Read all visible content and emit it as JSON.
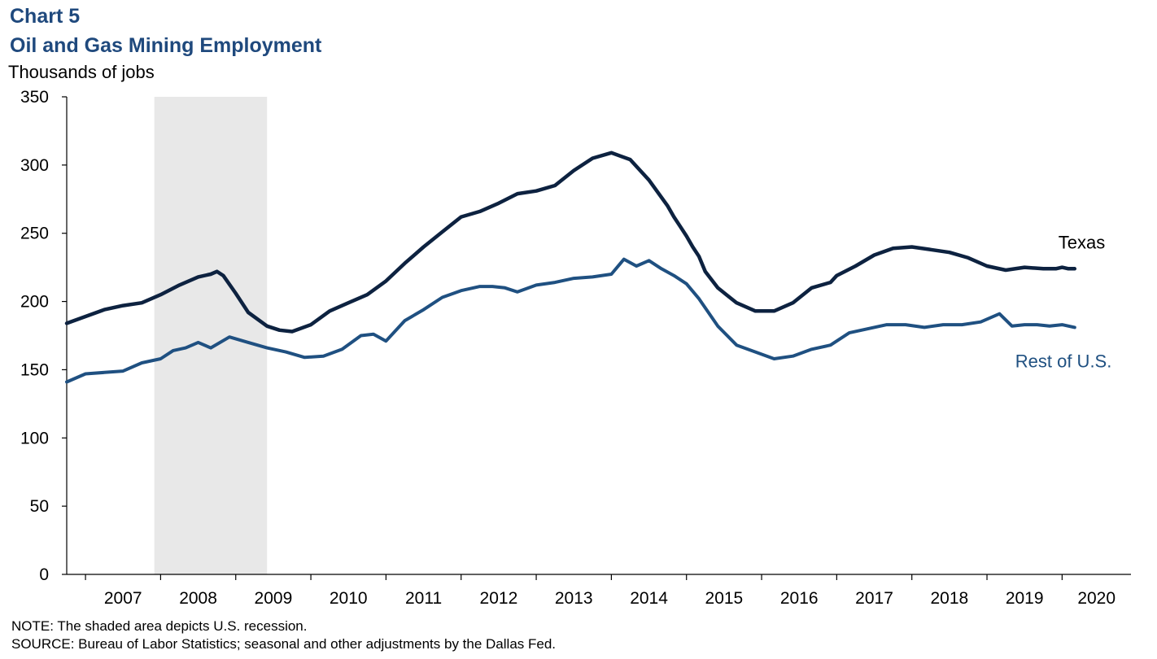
{
  "header": {
    "chart_number": "Chart 5",
    "title": "Oil and Gas Mining Employment",
    "unit_label": "Thousands of jobs"
  },
  "footer": {
    "note": "NOTE: The shaded area depicts U.S. recession.",
    "source": "SOURCE: Bureau of Labor Statistics; seasonal and other adjustments by the Dallas Fed."
  },
  "colors": {
    "texas": "#0d2240",
    "rest_of_us": "#1f5081",
    "recession_shade": "#e8e8e8",
    "title": "#1f497d"
  },
  "chart_data": {
    "type": "line",
    "title": "Oil and Gas Mining Employment",
    "ylabel": "Thousands of jobs",
    "ylim": [
      0,
      350
    ],
    "yticks": [
      0,
      50,
      100,
      150,
      200,
      250,
      300,
      350
    ],
    "xlim": [
      "2006-10",
      "2020-12"
    ],
    "xticks": [
      "2007",
      "2008",
      "2009",
      "2010",
      "2011",
      "2012",
      "2013",
      "2014",
      "2015",
      "2016",
      "2017",
      "2018",
      "2019",
      "2020"
    ],
    "shaded_regions": [
      {
        "start": "2007-12",
        "end": "2009-06"
      }
    ],
    "grid": false,
    "series": [
      {
        "name": "Texas",
        "x": [
          "2006-10",
          "2007-01",
          "2007-04",
          "2007-07",
          "2007-10",
          "2008-01",
          "2008-04",
          "2008-07",
          "2008-09",
          "2008-10",
          "2008-11",
          "2009-01",
          "2009-03",
          "2009-06",
          "2009-08",
          "2009-10",
          "2010-01",
          "2010-04",
          "2010-07",
          "2010-10",
          "2011-01",
          "2011-04",
          "2011-07",
          "2011-10",
          "2012-01",
          "2012-04",
          "2012-07",
          "2012-10",
          "2013-01",
          "2013-04",
          "2013-07",
          "2013-10",
          "2014-01",
          "2014-04",
          "2014-07",
          "2014-10",
          "2014-11",
          "2014-12",
          "2015-01",
          "2015-02",
          "2015-03",
          "2015-04",
          "2015-06",
          "2015-09",
          "2015-12",
          "2016-01",
          "2016-03",
          "2016-06",
          "2016-09",
          "2016-12",
          "2017-01",
          "2017-04",
          "2017-07",
          "2017-10",
          "2018-01",
          "2018-04",
          "2018-07",
          "2018-10",
          "2019-01",
          "2019-04",
          "2019-07",
          "2019-10",
          "2019-12",
          "2020-01",
          "2020-02",
          "2020-03"
        ],
        "values": [
          184,
          189,
          194,
          197,
          199,
          205,
          212,
          218,
          220,
          222,
          219,
          206,
          192,
          182,
          179,
          178,
          183,
          193,
          199,
          205,
          215,
          228,
          240,
          251,
          262,
          266,
          272,
          279,
          281,
          285,
          296,
          305,
          309,
          304,
          289,
          270,
          262,
          255,
          248,
          240,
          233,
          222,
          210,
          199,
          193,
          193,
          193,
          199,
          210,
          214,
          219,
          226,
          234,
          239,
          240,
          238,
          236,
          232,
          226,
          223,
          225,
          224,
          224,
          225,
          224,
          224
        ],
        "label_position": "right"
      },
      {
        "name": "Rest of U.S.",
        "x": [
          "2006-10",
          "2007-01",
          "2007-04",
          "2007-07",
          "2007-10",
          "2008-01",
          "2008-03",
          "2008-05",
          "2008-07",
          "2008-09",
          "2008-12",
          "2009-03",
          "2009-06",
          "2009-09",
          "2009-12",
          "2010-03",
          "2010-06",
          "2010-09",
          "2010-11",
          "2011-01",
          "2011-04",
          "2011-07",
          "2011-10",
          "2012-01",
          "2012-04",
          "2012-06",
          "2012-08",
          "2012-10",
          "2013-01",
          "2013-04",
          "2013-07",
          "2013-10",
          "2014-01",
          "2014-03",
          "2014-05",
          "2014-07",
          "2014-09",
          "2014-11",
          "2015-01",
          "2015-03",
          "2015-06",
          "2015-09",
          "2015-12",
          "2016-03",
          "2016-06",
          "2016-09",
          "2016-12",
          "2017-03",
          "2017-06",
          "2017-09",
          "2017-12",
          "2018-03",
          "2018-06",
          "2018-09",
          "2018-12",
          "2019-03",
          "2019-05",
          "2019-07",
          "2019-09",
          "2019-11",
          "2020-01",
          "2020-03"
        ],
        "values": [
          141,
          147,
          148,
          149,
          155,
          158,
          164,
          166,
          170,
          166,
          174,
          170,
          166,
          163,
          159,
          160,
          165,
          175,
          176,
          171,
          186,
          194,
          203,
          208,
          211,
          211,
          210,
          207,
          212,
          214,
          217,
          218,
          220,
          231,
          226,
          230,
          224,
          219,
          213,
          202,
          182,
          168,
          163,
          158,
          160,
          165,
          168,
          177,
          180,
          183,
          183,
          181,
          183,
          183,
          185,
          191,
          182,
          183,
          183,
          182,
          183,
          181
        ],
        "label_position": "below-right"
      }
    ]
  }
}
